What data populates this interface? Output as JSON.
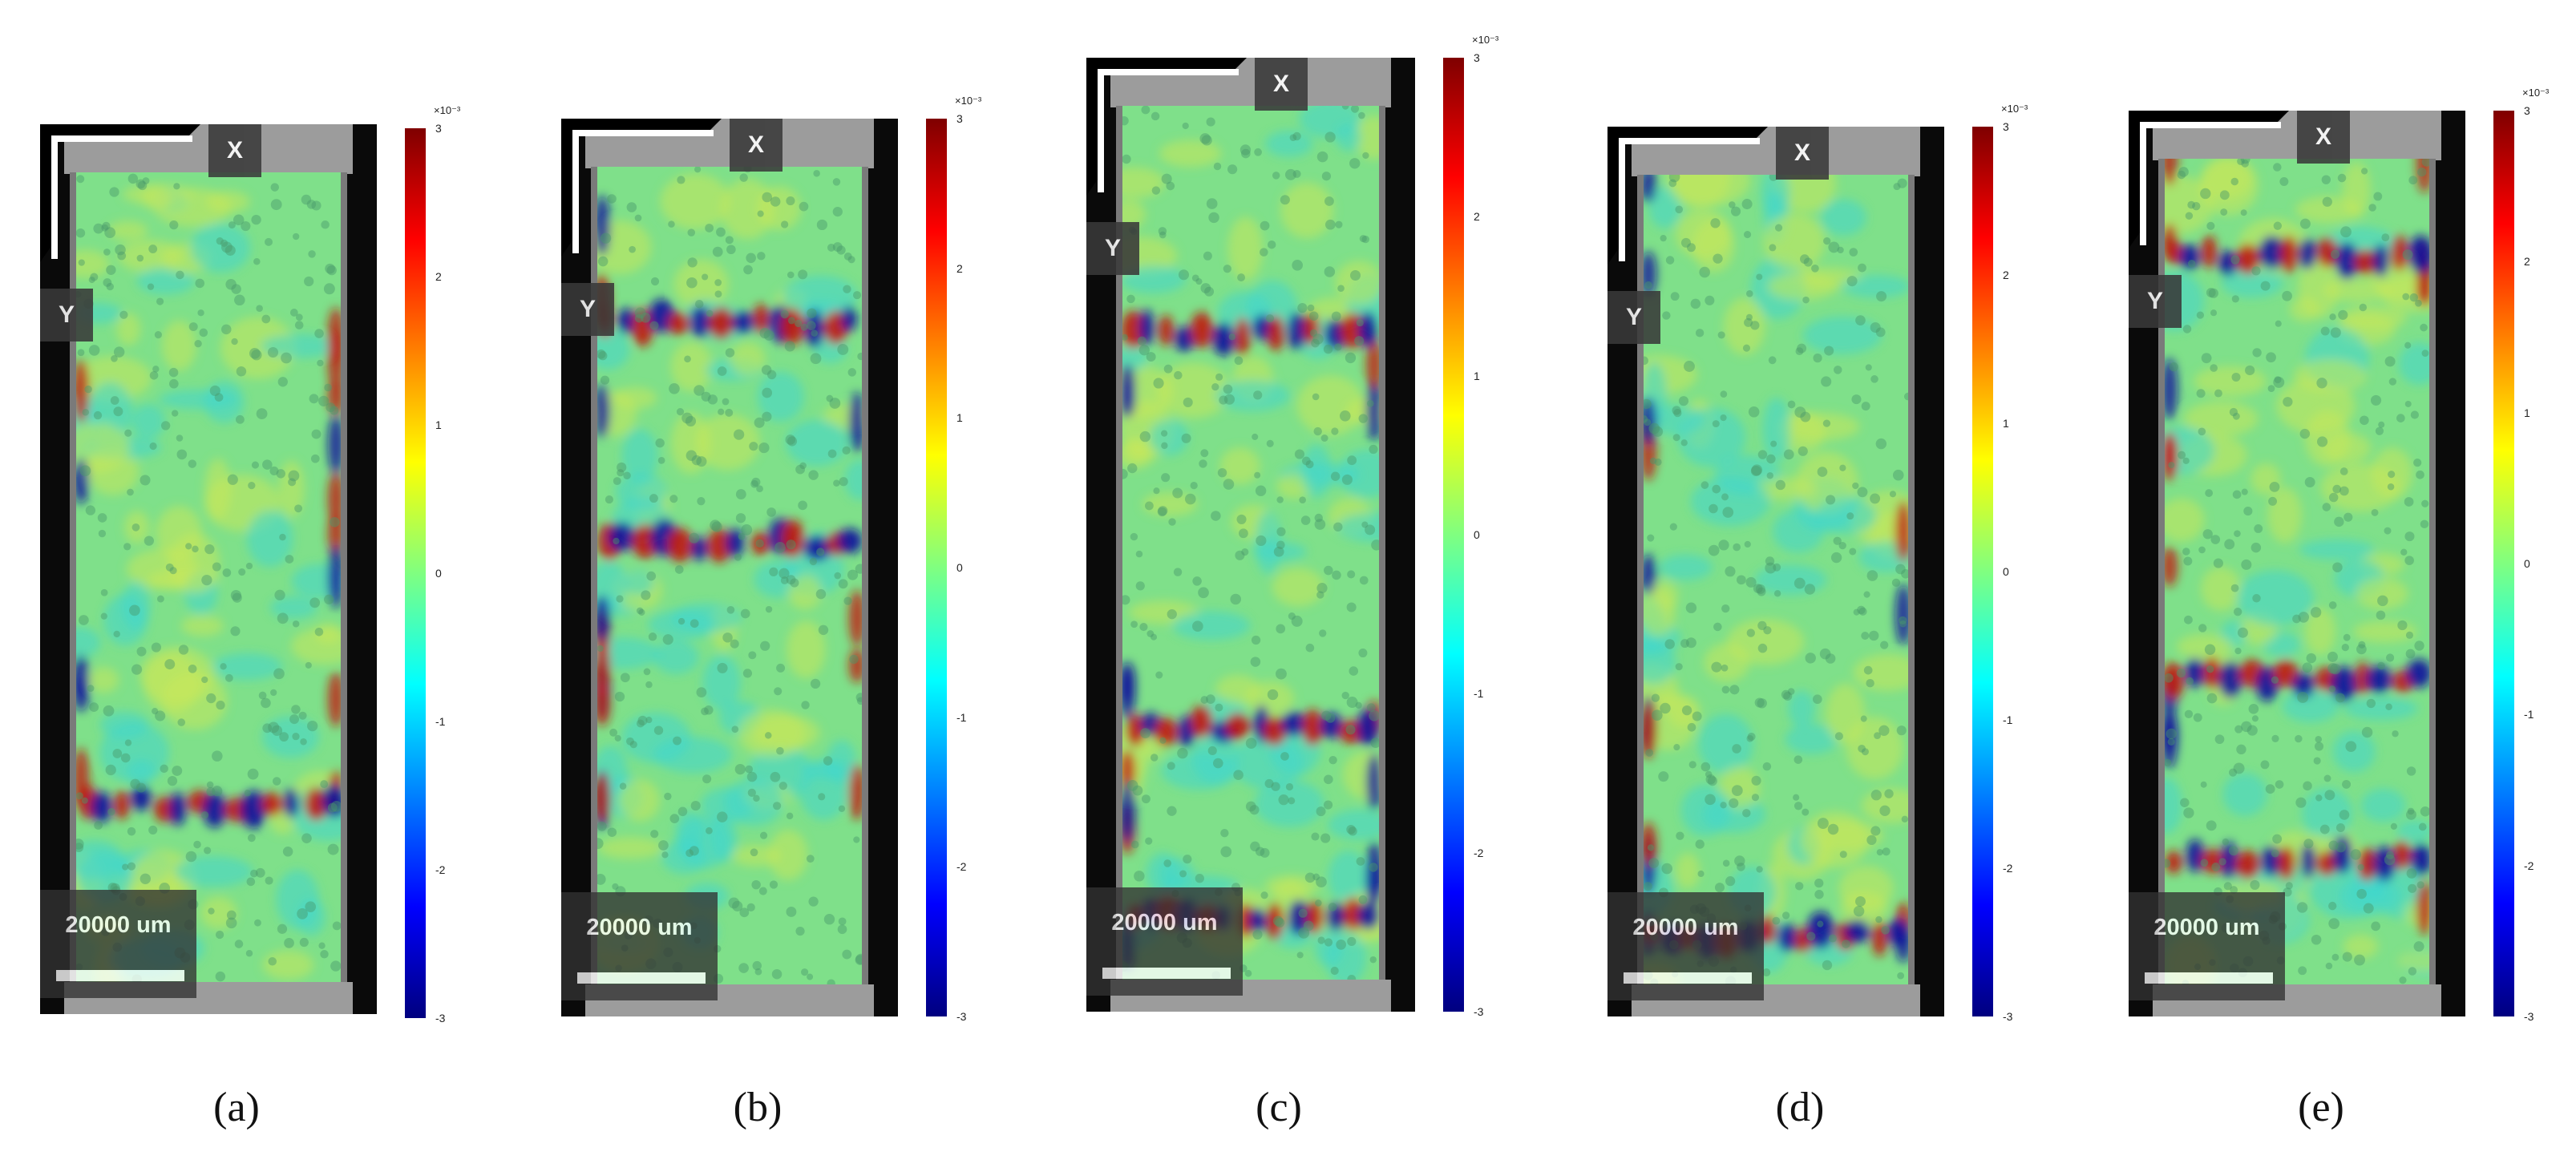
{
  "figure": {
    "colorbar": {
      "exponent_label": "×10⁻³",
      "ticks": [
        "3",
        "2",
        "1",
        "0",
        "-1",
        "-2",
        "-3"
      ],
      "colormap": "jet",
      "range": [
        -3,
        3
      ]
    },
    "axis_labels": {
      "x": "X",
      "y": "Y"
    },
    "scale_label": "20000 um",
    "panels": [
      {
        "caption": "(a)",
        "bands": [
          0.78
        ]
      },
      {
        "caption": "(b)",
        "bands": [
          0.19,
          0.46
        ]
      },
      {
        "caption": "(c)",
        "bands": [
          0.26,
          0.71,
          0.93
        ]
      },
      {
        "caption": "(d)",
        "bands": [
          0.94
        ]
      },
      {
        "caption": "(e)",
        "bands": [
          0.12,
          0.63,
          0.85
        ]
      }
    ],
    "colors": {
      "background_field": "#7fe08a",
      "hot": "#c0150f",
      "cold": "#12129c"
    }
  }
}
